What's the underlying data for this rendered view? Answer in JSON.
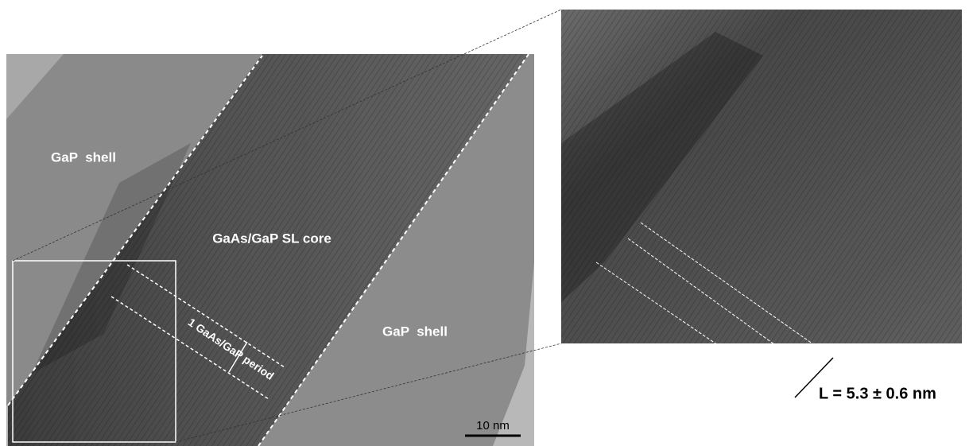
{
  "labels": {
    "shell_left": "GaP  shell",
    "core": "GaAs/GaP SL core",
    "shell_right": "GaP  shell",
    "period": "1 GaAs/GaP period",
    "scale_bar": "10 nm",
    "period_length": "L = 5.3 ± 0.6 nm"
  }
}
